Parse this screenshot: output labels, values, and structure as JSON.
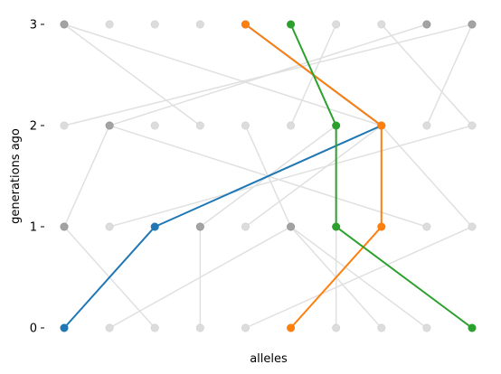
{
  "chart_data": {
    "type": "line",
    "xlabel": "alleles",
    "ylabel": "generations ago",
    "yticks": [
      {
        "value": 0,
        "label": "0"
      },
      {
        "value": 1,
        "label": "1"
      },
      {
        "value": 2,
        "label": "2"
      },
      {
        "value": 3,
        "label": "3"
      }
    ],
    "xlim": [
      0,
      9
    ],
    "ylim": [
      0,
      3
    ],
    "grid": false,
    "alleles": [
      0,
      1,
      2,
      3,
      4,
      5,
      6,
      7,
      8,
      9
    ],
    "dark_nodes": [
      {
        "x": 0,
        "y": 3
      },
      {
        "x": 8,
        "y": 3
      },
      {
        "x": 9,
        "y": 3
      },
      {
        "x": 1,
        "y": 2
      },
      {
        "x": 0,
        "y": 1
      },
      {
        "x": 3,
        "y": 1
      },
      {
        "x": 5,
        "y": 1
      }
    ],
    "background_edges": [
      {
        "from": [
          0,
          0
        ],
        "to": [
          2,
          1
        ]
      },
      {
        "from": [
          1,
          0
        ],
        "to": [
          5,
          1
        ]
      },
      {
        "from": [
          2,
          0
        ],
        "to": [
          0,
          1
        ]
      },
      {
        "from": [
          3,
          0
        ],
        "to": [
          3,
          1
        ]
      },
      {
        "from": [
          4,
          0
        ],
        "to": [
          9,
          1
        ]
      },
      {
        "from": [
          6,
          0
        ],
        "to": [
          6,
          1
        ]
      },
      {
        "from": [
          7,
          0
        ],
        "to": [
          5,
          1
        ]
      },
      {
        "from": [
          8,
          0
        ],
        "to": [
          5,
          1
        ]
      },
      {
        "from": [
          0,
          1
        ],
        "to": [
          1,
          2
        ]
      },
      {
        "from": [
          1,
          1
        ],
        "to": [
          9,
          2
        ]
      },
      {
        "from": [
          3,
          1
        ],
        "to": [
          6,
          2
        ]
      },
      {
        "from": [
          4,
          1
        ],
        "to": [
          7,
          2
        ]
      },
      {
        "from": [
          5,
          1
        ],
        "to": [
          4,
          2
        ]
      },
      {
        "from": [
          8,
          1
        ],
        "to": [
          1,
          2
        ]
      },
      {
        "from": [
          9,
          1
        ],
        "to": [
          7,
          2
        ]
      },
      {
        "from": [
          0,
          2
        ],
        "to": [
          9,
          3
        ]
      },
      {
        "from": [
          1,
          2
        ],
        "to": [
          8,
          3
        ]
      },
      {
        "from": [
          3,
          2
        ],
        "to": [
          0,
          3
        ]
      },
      {
        "from": [
          5,
          2
        ],
        "to": [
          6,
          3
        ]
      },
      {
        "from": [
          8,
          2
        ],
        "to": [
          9,
          3
        ]
      },
      {
        "from": [
          9,
          2
        ],
        "to": [
          7,
          3
        ]
      },
      {
        "from": [
          7,
          2
        ],
        "to": [
          0,
          3
        ]
      }
    ],
    "series": [
      {
        "color": "#1f77b4",
        "points": [
          [
            0,
            0
          ],
          [
            2,
            1
          ],
          [
            7,
            2
          ],
          [
            4,
            3
          ]
        ]
      },
      {
        "color": "#ff7f0e",
        "points": [
          [
            5,
            0
          ],
          [
            7,
            1
          ],
          [
            7,
            2
          ],
          [
            4,
            3
          ]
        ]
      },
      {
        "color": "#2ca02c",
        "points": [
          [
            9,
            0
          ],
          [
            6,
            1
          ],
          [
            6,
            2
          ],
          [
            5,
            3
          ]
        ]
      }
    ],
    "colors": {
      "background_edge": "#e0e0e0",
      "light_node": "#dcdcdc",
      "dark_node": "#a3a3a3"
    }
  }
}
